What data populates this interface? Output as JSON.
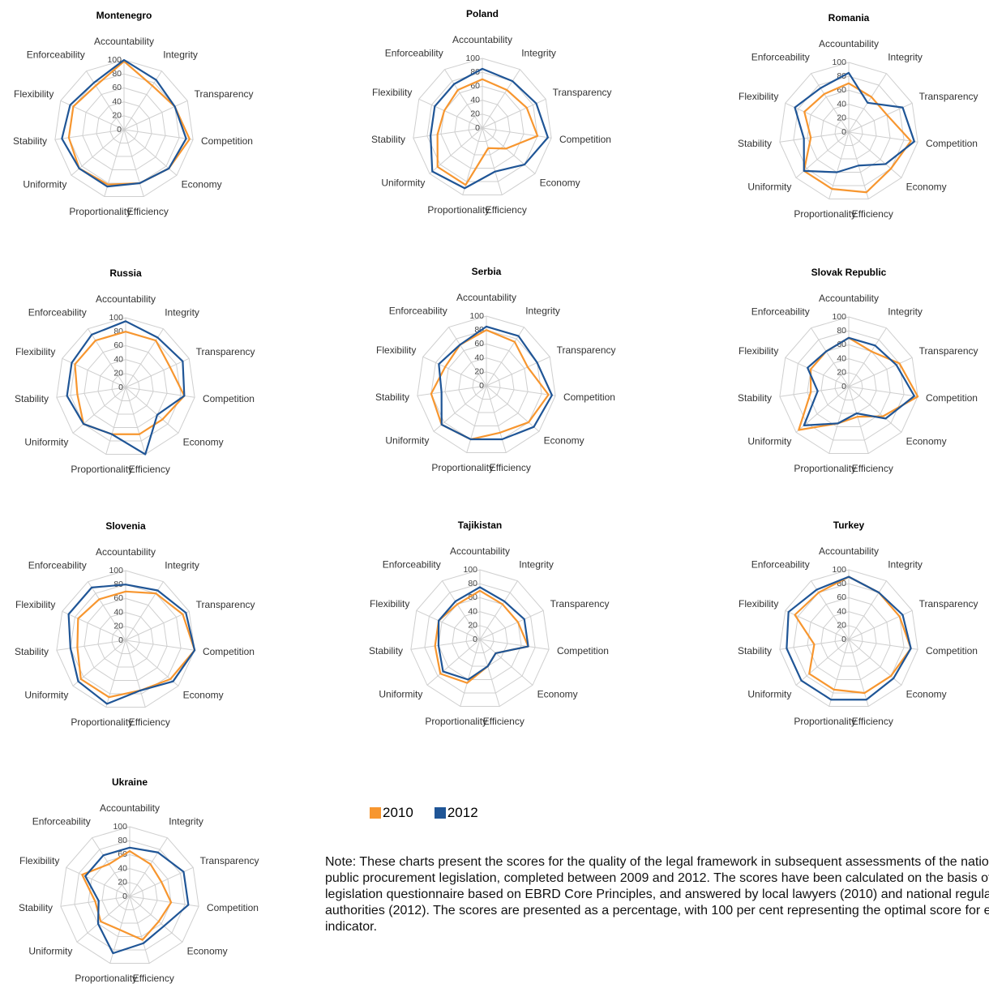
{
  "chart_data": [
    {
      "type": "radar",
      "title": "Montenegro",
      "categories": [
        "Accountability",
        "Integrity",
        "Transparency",
        "Competition",
        "Economy",
        "Efficiency",
        "Proportionality",
        "Uniformity",
        "Stability",
        "Flexibility",
        "Enforceability"
      ],
      "rlim": [
        0,
        100
      ],
      "rticks": [
        0,
        20,
        40,
        60,
        80,
        100
      ],
      "grid": true,
      "series": [
        {
          "name": "2010",
          "color": "#f7962f",
          "values": [
            98,
            75,
            80,
            95,
            85,
            80,
            82,
            85,
            80,
            80,
            75
          ]
        },
        {
          "name": "2012",
          "color": "#1f5596",
          "values": [
            100,
            85,
            80,
            90,
            85,
            80,
            85,
            85,
            90,
            85,
            80
          ]
        }
      ]
    },
    {
      "type": "radar",
      "title": "Poland",
      "categories": [
        "Accountability",
        "Integrity",
        "Transparency",
        "Competition",
        "Economy",
        "Efficiency",
        "Proportionality",
        "Uniformity",
        "Stability",
        "Flexibility",
        "Enforceability"
      ],
      "rlim": [
        0,
        100
      ],
      "rticks": [
        0,
        20,
        40,
        60,
        80,
        100
      ],
      "grid": true,
      "series": [
        {
          "name": "2010",
          "color": "#f7962f",
          "values": [
            70,
            65,
            70,
            80,
            45,
            30,
            85,
            85,
            65,
            60,
            65
          ]
        },
        {
          "name": "2012",
          "color": "#1f5596",
          "values": [
            85,
            80,
            85,
            95,
            80,
            65,
            90,
            95,
            75,
            75,
            75
          ]
        }
      ]
    },
    {
      "type": "radar",
      "title": "Romania",
      "categories": [
        "Accountability",
        "Integrity",
        "Transparency",
        "Competition",
        "Economy",
        "Efficiency",
        "Proportionality",
        "Uniformity",
        "Stability",
        "Flexibility",
        "Enforceability"
      ],
      "rlim": [
        0,
        100
      ],
      "rticks": [
        0,
        20,
        40,
        60,
        80,
        100
      ],
      "grid": true,
      "series": [
        {
          "name": "2010",
          "color": "#f7962f",
          "values": [
            70,
            60,
            60,
            90,
            80,
            90,
            85,
            85,
            55,
            70,
            65
          ]
        },
        {
          "name": "2012",
          "color": "#1f5596",
          "values": [
            85,
            50,
            85,
            95,
            70,
            50,
            60,
            85,
            65,
            85,
            75
          ]
        }
      ]
    },
    {
      "type": "radar",
      "title": "Russia",
      "categories": [
        "Accountability",
        "Integrity",
        "Transparency",
        "Competition",
        "Economy",
        "Efficiency",
        "Proportionality",
        "Uniformity",
        "Stability",
        "Flexibility",
        "Enforceability"
      ],
      "rlim": [
        0,
        100
      ],
      "rticks": [
        0,
        20,
        40,
        60,
        80,
        100
      ],
      "grid": true,
      "series": [
        {
          "name": "2010",
          "color": "#f7962f",
          "values": [
            80,
            80,
            70,
            85,
            70,
            70,
            70,
            80,
            70,
            80,
            80
          ]
        },
        {
          "name": "2012",
          "color": "#1f5596",
          "values": [
            95,
            85,
            90,
            85,
            60,
            100,
            70,
            80,
            85,
            85,
            90
          ]
        }
      ]
    },
    {
      "type": "radar",
      "title": "Serbia",
      "categories": [
        "Accountability",
        "Integrity",
        "Transparency",
        "Competition",
        "Economy",
        "Efficiency",
        "Proportionality",
        "Uniformity",
        "Stability",
        "Flexibility",
        "Enforceability"
      ],
      "rlim": [
        0,
        100
      ],
      "rticks": [
        0,
        20,
        40,
        60,
        80,
        100
      ],
      "grid": true,
      "series": [
        {
          "name": "2010",
          "color": "#f7962f",
          "values": [
            80,
            75,
            65,
            90,
            80,
            70,
            80,
            85,
            80,
            65,
            70
          ]
        },
        {
          "name": "2012",
          "color": "#1f5596",
          "values": [
            85,
            85,
            80,
            95,
            90,
            80,
            80,
            85,
            65,
            75,
            70
          ]
        }
      ]
    },
    {
      "type": "radar",
      "title": "Slovak Republic",
      "categories": [
        "Accountability",
        "Integrity",
        "Transparency",
        "Competition",
        "Economy",
        "Efficiency",
        "Proportionality",
        "Uniformity",
        "Stability",
        "Flexibility",
        "Enforceability"
      ],
      "rlim": [
        0,
        100
      ],
      "rticks": [
        0,
        20,
        40,
        60,
        80,
        100
      ],
      "grid": true,
      "series": [
        {
          "name": "2010",
          "color": "#f7962f",
          "values": [
            70,
            60,
            80,
            100,
            65,
            45,
            55,
            95,
            55,
            60,
            60
          ]
        },
        {
          "name": "2012",
          "color": "#1f5596",
          "values": [
            70,
            70,
            75,
            95,
            70,
            40,
            55,
            85,
            45,
            65,
            60
          ]
        }
      ]
    },
    {
      "type": "radar",
      "title": "Slovenia",
      "categories": [
        "Accountability",
        "Integrity",
        "Transparency",
        "Competition",
        "Economy",
        "Efficiency",
        "Proportionality",
        "Uniformity",
        "Stability",
        "Flexibility",
        "Enforceability"
      ],
      "rlim": [
        0,
        100
      ],
      "rticks": [
        0,
        20,
        40,
        60,
        80,
        100
      ],
      "grid": true,
      "series": [
        {
          "name": "2010",
          "color": "#f7962f",
          "values": [
            70,
            80,
            90,
            100,
            85,
            75,
            85,
            85,
            70,
            75,
            70
          ]
        },
        {
          "name": "2012",
          "color": "#1f5596",
          "values": [
            80,
            85,
            95,
            100,
            90,
            75,
            95,
            90,
            80,
            90,
            90
          ]
        }
      ]
    },
    {
      "type": "radar",
      "title": "Tajikistan",
      "categories": [
        "Accountability",
        "Integrity",
        "Transparency",
        "Competition",
        "Economy",
        "Efficiency",
        "Proportionality",
        "Uniformity",
        "Stability",
        "Flexibility",
        "Enforceability"
      ],
      "rlim": [
        0,
        100
      ],
      "rticks": [
        0,
        20,
        40,
        60,
        80,
        100
      ],
      "grid": true,
      "series": [
        {
          "name": "2010",
          "color": "#f7962f",
          "values": [
            70,
            60,
            60,
            70,
            30,
            40,
            65,
            75,
            65,
            65,
            60
          ]
        },
        {
          "name": "2012",
          "color": "#1f5596",
          "values": [
            75,
            65,
            70,
            70,
            30,
            40,
            60,
            70,
            60,
            65,
            65
          ]
        }
      ]
    },
    {
      "type": "radar",
      "title": "Turkey",
      "categories": [
        "Accountability",
        "Integrity",
        "Transparency",
        "Competition",
        "Economy",
        "Efficiency",
        "Proportionality",
        "Uniformity",
        "Stability",
        "Flexibility",
        "Enforceability"
      ],
      "rlim": [
        0,
        100
      ],
      "rticks": [
        0,
        20,
        40,
        60,
        80,
        100
      ],
      "grid": true,
      "series": [
        {
          "name": "2010",
          "color": "#f7962f",
          "values": [
            90,
            80,
            80,
            90,
            80,
            80,
            75,
            75,
            50,
            85,
            80
          ]
        },
        {
          "name": "2012",
          "color": "#1f5596",
          "values": [
            90,
            80,
            85,
            90,
            85,
            90,
            90,
            90,
            90,
            95,
            85
          ]
        }
      ]
    },
    {
      "type": "radar",
      "title": "Ukraine",
      "categories": [
        "Accountability",
        "Integrity",
        "Transparency",
        "Competition",
        "Economy",
        "Efficiency",
        "Proportionality",
        "Uniformity",
        "Stability",
        "Flexibility",
        "Enforceability"
      ],
      "rlim": [
        0,
        100
      ],
      "rticks": [
        0,
        20,
        40,
        60,
        80,
        100
      ],
      "grid": true,
      "series": [
        {
          "name": "2010",
          "color": "#f7962f",
          "values": [
            65,
            55,
            50,
            60,
            55,
            65,
            50,
            55,
            50,
            75,
            55
          ]
        },
        {
          "name": "2012",
          "color": "#1f5596",
          "values": [
            70,
            75,
            85,
            85,
            65,
            70,
            85,
            60,
            45,
            70,
            70
          ]
        }
      ]
    }
  ],
  "note": "Note: These charts present the scores for the quality of the legal framework in subsequent assessments of the national public procurement legislation, completed between 2009 and 2012. The scores have been calculated on the basis of a legislation questionnaire based on EBRD Core Principles, and answered by local lawyers (2010) and national regulatory authorities (2012). The scores are presented as a percentage, with 100 per cent representing the optimal score for each indicator."
}
